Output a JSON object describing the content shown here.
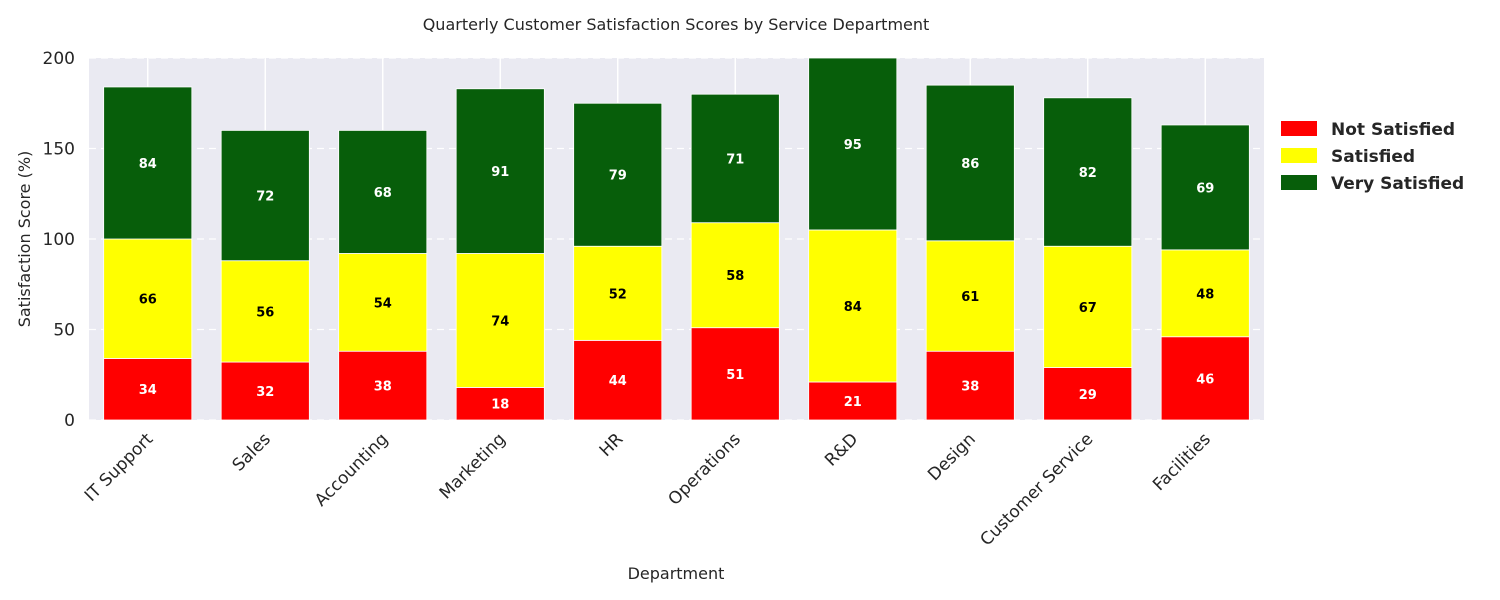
{
  "chart_data": {
    "type": "bar",
    "stacked": true,
    "title": "Quarterly Customer Satisfaction Scores by Service Department",
    "xlabel": "Department",
    "ylabel": "Satisfaction Score (%)",
    "ylim": [
      0,
      200
    ],
    "yticks": [
      0,
      50,
      100,
      150,
      200
    ],
    "grid": true,
    "legend_position": "right",
    "categories": [
      "IT Support",
      "Sales",
      "Accounting",
      "Marketing",
      "HR",
      "Operations",
      "R&D",
      "Design",
      "Customer Service",
      "Facilities"
    ],
    "series": [
      {
        "name": "Not Satisfied",
        "color": "#ff0000",
        "label_color": "#ffffff",
        "values": [
          34,
          32,
          38,
          18,
          44,
          51,
          21,
          38,
          29,
          46
        ]
      },
      {
        "name": "Satisfied",
        "color": "#ffff00",
        "label_color": "#000000",
        "values": [
          66,
          56,
          54,
          74,
          52,
          58,
          84,
          61,
          67,
          48
        ]
      },
      {
        "name": "Very Satisfied",
        "color": "#075e0a",
        "label_color": "#ffffff",
        "values": [
          84,
          72,
          68,
          91,
          79,
          71,
          95,
          86,
          82,
          69
        ]
      }
    ]
  }
}
